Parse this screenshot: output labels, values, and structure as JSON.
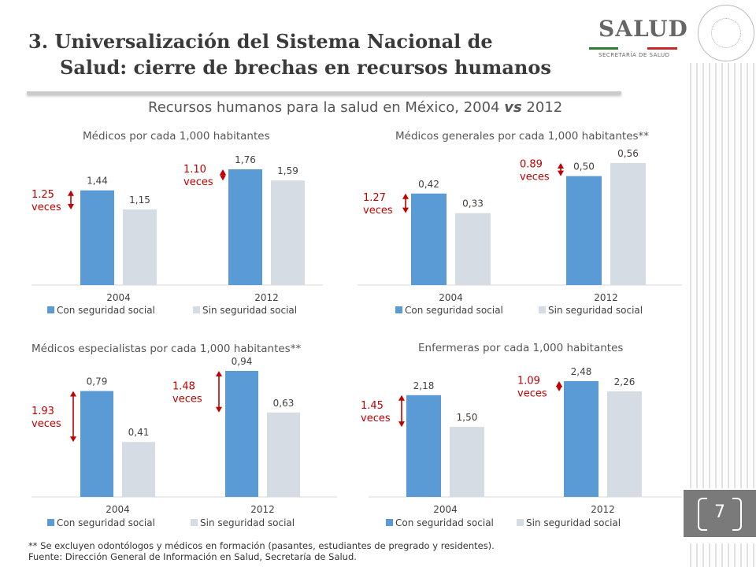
{
  "header": {
    "title_line1": "3. Universalización del Sistema Nacional de",
    "title_line2": "Salud: cierre de brechas en recursos humanos",
    "logo_name": "SALUD",
    "logo_sub": "SECRETARÍA DE SALUD",
    "subtitle_pre": "Recursos humanos para la salud en México, 2004 ",
    "subtitle_em": "vs",
    "subtitle_post": " 2012"
  },
  "colors": {
    "con": "#5b9bd5",
    "sin": "#d6dce4",
    "arrow": "#c00000"
  },
  "chart_data": [
    {
      "type": "bar",
      "title": "Médicos por cada 1,000 habitantes",
      "categories": [
        "2004",
        "2012"
      ],
      "series": [
        {
          "name": "Con seguridad social",
          "values": [
            1.44,
            1.76
          ],
          "labels": [
            "1,44",
            "1,76"
          ]
        },
        {
          "name": "Sin seguridad social",
          "values": [
            1.15,
            1.59
          ],
          "labels": [
            "1,15",
            "1,59"
          ]
        }
      ],
      "ratios": [
        [
          "1.25",
          "veces"
        ],
        [
          "1.10",
          "veces"
        ]
      ],
      "legend": "bottom"
    },
    {
      "type": "bar",
      "title": "Médicos generales por cada 1,000 habitantes**",
      "categories": [
        "2004",
        "2012"
      ],
      "series": [
        {
          "name": "Con seguridad social",
          "values": [
            0.42,
            0.5
          ],
          "labels": [
            "0,42",
            "0,50"
          ]
        },
        {
          "name": "Sin seguridad social",
          "values": [
            0.33,
            0.56
          ],
          "labels": [
            "0,33",
            "0,56"
          ]
        }
      ],
      "ratios": [
        [
          "1.27",
          "veces"
        ],
        [
          "0.89",
          "veces"
        ]
      ],
      "legend": "bottom"
    },
    {
      "type": "bar",
      "title": "Médicos especialistas por cada 1,000 habitantes**",
      "categories": [
        "2004",
        "2012"
      ],
      "series": [
        {
          "name": "Con seguridad social",
          "values": [
            0.79,
            0.94
          ],
          "labels": [
            "0,79",
            "0,94"
          ]
        },
        {
          "name": "Sin seguridad social",
          "values": [
            0.41,
            0.63
          ],
          "labels": [
            "0,41",
            "0,63"
          ]
        }
      ],
      "ratios": [
        [
          "1.93",
          "veces"
        ],
        [
          "1.48",
          "veces"
        ]
      ],
      "legend": "bottom"
    },
    {
      "type": "bar",
      "title": "Enfermeras por cada 1,000 habitantes",
      "categories": [
        "2004",
        "2012"
      ],
      "series": [
        {
          "name": "Con seguridad social",
          "values": [
            2.18,
            2.48
          ],
          "labels": [
            "2,18",
            "2,48"
          ]
        },
        {
          "name": "Sin seguridad social",
          "values": [
            1.5,
            2.26
          ],
          "labels": [
            "1,50",
            "2,26"
          ]
        }
      ],
      "ratios": [
        [
          "1.45",
          "veces"
        ],
        [
          "1.09",
          "veces"
        ]
      ],
      "legend": "bottom"
    }
  ],
  "footer": {
    "note": "** Se excluyen odontólogos y médicos en formación (pasantes, estudiantes de pregrado y residentes).",
    "source": "Fuente: Dirección General de Información en Salud, Secretaría de Salud.",
    "page_number": "7"
  }
}
